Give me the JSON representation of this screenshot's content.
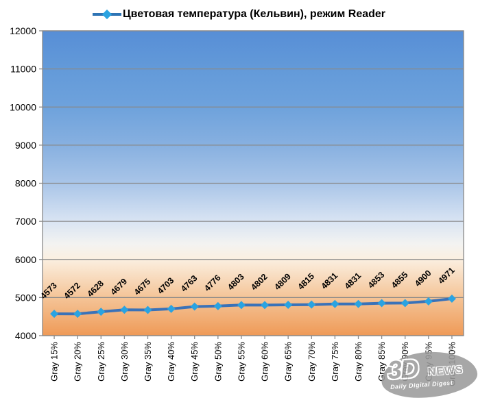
{
  "legend": {
    "label": "Цветовая температура (Кельвин), режим Reader"
  },
  "watermark": {
    "big": "3D",
    "news": "NEWS",
    "tagline": "Daily Digital Digest"
  },
  "chart_data": {
    "type": "line",
    "title": "Цветовая температура (Кельвин), режим Reader",
    "categories": [
      "Gray 15%",
      "Gray 20%",
      "Gray 25%",
      "Gray 30%",
      "Gray 35%",
      "Gray 40%",
      "Gray 45%",
      "Gray 50%",
      "Gray 55%",
      "Gray 60%",
      "Gray 65%",
      "Gray 70%",
      "Gray 75%",
      "Gray 80%",
      "Gray 85%",
      "Gray 90%",
      "Gray 95%",
      "Gray 100%"
    ],
    "values": [
      4573,
      4572,
      4628,
      4679,
      4675,
      4703,
      4763,
      4776,
      4803,
      4802,
      4809,
      4815,
      4831,
      4831,
      4853,
      4855,
      4900,
      4971
    ],
    "xlabel": "",
    "ylabel": "",
    "ylim": [
      4000,
      12000
    ],
    "yticks": [
      4000,
      5000,
      6000,
      7000,
      8000,
      9000,
      10000,
      11000,
      12000
    ],
    "grid": true,
    "legend_position": "top",
    "data_labels": true,
    "marker": "diamond",
    "colors": {
      "line": "#3a72b8",
      "marker": "#2aa3e1",
      "legend_line": "#2e74b5",
      "gridline": "#898989",
      "axis": "#898989",
      "tick_label": "#000000",
      "data_label": "#000000",
      "watermark": "#9b9b9b"
    },
    "background_gradient": [
      {
        "at": 0.0,
        "color": "#578ed6"
      },
      {
        "at": 0.125,
        "color": "#639ad9"
      },
      {
        "at": 0.25,
        "color": "#6ea2dc"
      },
      {
        "at": 0.375,
        "color": "#87b0e0"
      },
      {
        "at": 0.5,
        "color": "#a9c5e8"
      },
      {
        "at": 0.625,
        "color": "#d9e4f3"
      },
      {
        "at": 0.7,
        "color": "#f3f3f1"
      },
      {
        "at": 0.75,
        "color": "#fbefe0"
      },
      {
        "at": 0.875,
        "color": "#f4c497"
      },
      {
        "at": 1.0,
        "color": "#ef9a57"
      }
    ]
  }
}
